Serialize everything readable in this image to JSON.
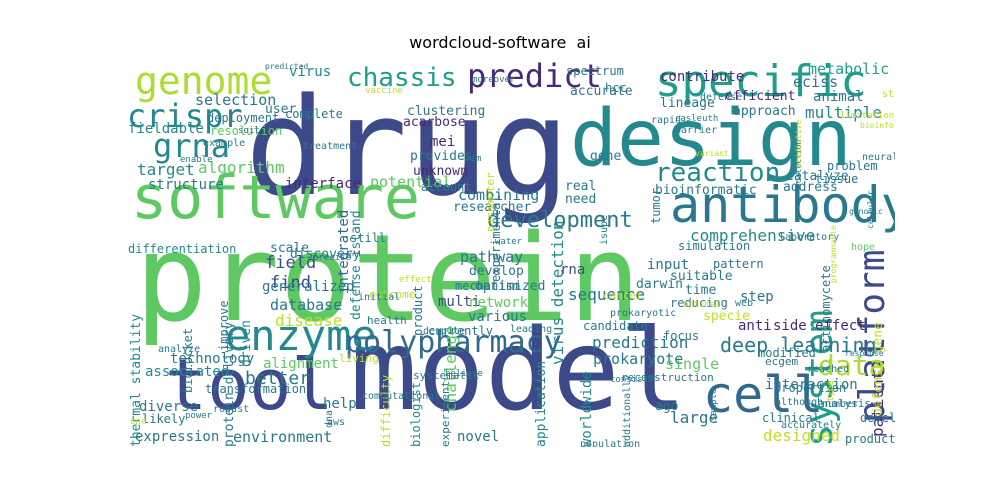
{
  "title": "wordcloud-software  ai",
  "palette": [
    "#3d4a89",
    "#23898e",
    "#5ec962",
    "#482878",
    "#2a788e",
    "#bddf26",
    "#addc30",
    "#31688e",
    "#1f9e89",
    "#fde725"
  ],
  "words": [
    {
      "text": "drug",
      "c": 0
    },
    {
      "text": "protein",
      "c": 2
    },
    {
      "text": "model",
      "c": 0
    },
    {
      "text": "design",
      "c": 1
    },
    {
      "text": "software",
      "c": 2
    },
    {
      "text": "antibody",
      "c": 4
    },
    {
      "text": "tool",
      "c": 0
    },
    {
      "text": "cell",
      "c": 7
    },
    {
      "text": "genome",
      "c": 6
    },
    {
      "text": "specific",
      "c": 8
    },
    {
      "text": "predict",
      "c": 3
    },
    {
      "text": "crispr",
      "c": 1
    },
    {
      "text": "grna",
      "c": 1
    },
    {
      "text": "enzyme",
      "c": 1
    },
    {
      "text": "polypharmacy",
      "c": 7
    },
    {
      "text": "platform",
      "c": 0
    },
    {
      "text": "system",
      "c": 8
    },
    {
      "text": "data",
      "c": 6
    },
    {
      "text": "reaction",
      "c": 1
    },
    {
      "text": "development",
      "c": 4
    },
    {
      "text": "chassis",
      "c": 8
    },
    {
      "text": "deep learning",
      "c": 4
    },
    {
      "text": "eciss",
      "c": 4
    },
    {
      "text": "metabolic",
      "c": 8
    },
    {
      "text": "contribute",
      "c": 3
    },
    {
      "text": "selection",
      "c": 4
    },
    {
      "text": "algorithm",
      "c": 2
    },
    {
      "text": "target",
      "c": 1
    },
    {
      "text": "structure",
      "c": 4
    },
    {
      "text": "fieldable",
      "c": 1
    },
    {
      "text": "virus",
      "c": 1
    },
    {
      "text": "lineage",
      "c": 4
    },
    {
      "text": "efficient",
      "c": 3
    },
    {
      "text": "animal",
      "c": 4
    },
    {
      "text": "multiple",
      "c": 1
    },
    {
      "text": "approach",
      "c": 4
    },
    {
      "text": "mei",
      "c": 3
    },
    {
      "text": "provides",
      "c": 4
    },
    {
      "text": "acarbose",
      "c": 3
    },
    {
      "text": "clustering",
      "c": 4
    },
    {
      "text": "unknown",
      "c": 3
    },
    {
      "text": "combining",
      "c": 4
    },
    {
      "text": "potential",
      "c": 2
    },
    {
      "text": "integrated",
      "c": 7
    },
    {
      "text": "defense island",
      "c": 1
    },
    {
      "text": "virus detection",
      "c": 1
    },
    {
      "text": "interface",
      "c": 3
    },
    {
      "text": "researcher",
      "c": 4
    },
    {
      "text": "comprehensive",
      "c": 1
    },
    {
      "text": "bioinformatic",
      "c": 4
    },
    {
      "text": "address",
      "c": 4
    },
    {
      "text": "patient",
      "c": 3
    },
    {
      "text": "field",
      "c": 0
    },
    {
      "text": "find",
      "c": 0
    },
    {
      "text": "database",
      "c": 4
    },
    {
      "text": "disease",
      "c": 5
    },
    {
      "text": "pathway",
      "c": 4
    },
    {
      "text": "sequence",
      "c": 4
    },
    {
      "text": "input",
      "c": 4
    },
    {
      "text": "suitable",
      "c": 4
    },
    {
      "text": "time",
      "c": 4
    },
    {
      "text": "darwin",
      "c": 4
    },
    {
      "text": "step",
      "c": 4
    },
    {
      "text": "prediction",
      "c": 4
    },
    {
      "text": "prokaryote",
      "c": 4
    },
    {
      "text": "single",
      "c": 2
    },
    {
      "text": "anti",
      "c": 3
    },
    {
      "text": "side effect",
      "c": 3
    },
    {
      "text": "alignment",
      "c": 2
    },
    {
      "text": "technology",
      "c": 4
    },
    {
      "text": "associated",
      "c": 1
    },
    {
      "text": "better",
      "c": 4
    },
    {
      "text": "environment",
      "c": 4
    },
    {
      "text": "help",
      "c": 4
    },
    {
      "text": "interaction",
      "c": 4
    },
    {
      "text": "large",
      "c": 4
    },
    {
      "text": "expression",
      "c": 4
    },
    {
      "text": "designed",
      "c": 5
    },
    {
      "text": "production",
      "c": 4
    },
    {
      "text": "novel",
      "c": 4
    },
    {
      "text": "multi",
      "c": 0
    },
    {
      "text": "network",
      "c": 2
    },
    {
      "text": "various",
      "c": 4
    },
    {
      "text": "develop",
      "c": 4
    },
    {
      "text": "optimized",
      "c": 4
    },
    {
      "text": "currently",
      "c": 4
    },
    {
      "text": "rna",
      "c": 0
    },
    {
      "text": "gene",
      "c": 4
    },
    {
      "text": "real",
      "c": 4
    },
    {
      "text": "need",
      "c": 4
    },
    {
      "text": "account",
      "c": 4
    },
    {
      "text": "mechanism",
      "c": 4
    },
    {
      "text": "product",
      "c": 4
    },
    {
      "text": "challenge",
      "c": 2
    },
    {
      "text": "experimental",
      "c": 4
    },
    {
      "text": "parameter",
      "c": 5
    },
    {
      "text": "accurate",
      "c": 4
    },
    {
      "text": "spectrum",
      "c": 4
    },
    {
      "text": "hcc",
      "c": 4
    },
    {
      "text": "user",
      "c": 4
    },
    {
      "text": "complete",
      "c": 4
    },
    {
      "text": "deployment",
      "c": 4
    },
    {
      "text": "resolution",
      "c": 2
    },
    {
      "text": "example",
      "c": 4
    },
    {
      "text": "enable",
      "c": 4
    },
    {
      "text": "differentiation",
      "c": 1
    },
    {
      "text": "scale",
      "c": 4
    },
    {
      "text": "discovery",
      "c": 4
    },
    {
      "text": "still",
      "c": 4
    },
    {
      "text": "generalized",
      "c": 4
    },
    {
      "text": "transformation",
      "c": 4
    },
    {
      "text": "diverse",
      "c": 4
    },
    {
      "text": "likely",
      "c": 4
    },
    {
      "text": "robust",
      "c": 4
    },
    {
      "text": "power",
      "c": 4
    },
    {
      "text": "pattern",
      "c": 4
    },
    {
      "text": "reducing",
      "c": 4
    },
    {
      "text": "simulation",
      "c": 4
    },
    {
      "text": "laboratory",
      "c": 4
    },
    {
      "text": "hope",
      "c": 2
    },
    {
      "text": "catalyze",
      "c": 4
    },
    {
      "text": "tissue",
      "c": 4
    },
    {
      "text": "problem",
      "c": 4
    },
    {
      "text": "neural",
      "c": 4
    },
    {
      "text": "study",
      "c": 5
    },
    {
      "text": "rapid",
      "c": 4
    },
    {
      "text": "barrier",
      "c": 4
    },
    {
      "text": "defense",
      "c": 4
    },
    {
      "text": "modified",
      "c": 4
    },
    {
      "text": "ecgem",
      "c": 4
    },
    {
      "text": "although",
      "c": 4
    },
    {
      "text": "proportion",
      "c": 4
    },
    {
      "text": "clinical",
      "c": 4
    },
    {
      "text": "accurately",
      "c": 4
    },
    {
      "text": "analysis",
      "c": 4
    },
    {
      "text": "developed",
      "c": 4
    },
    {
      "text": "defense gene",
      "c": 5
    },
    {
      "text": "actinomycete",
      "c": 4
    },
    {
      "text": "tumor",
      "c": 4
    },
    {
      "text": "protein delivery",
      "c": 4
    },
    {
      "text": "thermal stability",
      "c": 1
    },
    {
      "text": "driven",
      "c": 1
    },
    {
      "text": "improve",
      "c": 4
    },
    {
      "text": "biorocket",
      "c": 4
    },
    {
      "text": "worldwide",
      "c": 1
    },
    {
      "text": "application",
      "c": 1
    },
    {
      "text": "biologist",
      "c": 1
    },
    {
      "text": "difficulty",
      "c": 5
    },
    {
      "text": "experiment",
      "c": 4
    },
    {
      "text": "ago",
      "c": 4
    },
    {
      "text": "specie",
      "c": 5
    },
    {
      "text": "focus",
      "c": 4
    },
    {
      "text": "leading",
      "c": 4
    },
    {
      "text": "candidate",
      "c": 4
    },
    {
      "text": "reconstruction",
      "c": 4
    },
    {
      "text": "web",
      "c": 4
    },
    {
      "text": "cancer",
      "c": 5
    },
    {
      "text": "health",
      "c": 4
    },
    {
      "text": "outcome",
      "c": 5
    },
    {
      "text": "initial",
      "c": 4
    },
    {
      "text": "analyze",
      "c": 4
    },
    {
      "text": "dna",
      "c": 4
    },
    {
      "text": "computational",
      "c": 4
    },
    {
      "text": "living",
      "c": 5
    },
    {
      "text": "additionally",
      "c": 4
    },
    {
      "text": "population",
      "c": 4
    },
    {
      "text": "systematic",
      "c": 4
    },
    {
      "text": "believe",
      "c": 4
    },
    {
      "text": "predicted",
      "c": 4
    },
    {
      "text": "moreover",
      "c": 4
    },
    {
      "text": "aim",
      "c": 4
    },
    {
      "text": "treatment",
      "c": 4
    },
    {
      "text": "isupe",
      "c": 4
    },
    {
      "text": "effect",
      "c": 5
    },
    {
      "text": "water",
      "c": 4
    },
    {
      "text": "precise",
      "c": 4
    },
    {
      "text": "casleuth",
      "c": 4
    },
    {
      "text": "number",
      "c": 4
    },
    {
      "text": "aws",
      "c": 4
    },
    {
      "text": "one",
      "c": 5
    },
    {
      "text": "optimal",
      "c": 5
    },
    {
      "text": "prokaryotic",
      "c": 4
    },
    {
      "text": "consists",
      "c": 4
    },
    {
      "text": "despite",
      "c": 4
    },
    {
      "text": "type",
      "c": 5
    },
    {
      "text": "soil",
      "c": 4
    },
    {
      "text": "reached",
      "c": 4
    },
    {
      "text": "sample",
      "c": 4
    },
    {
      "text": "vaccine",
      "c": 5
    },
    {
      "text": "detection",
      "c": 4
    },
    {
      "text": "predictive",
      "c": 5
    },
    {
      "text": "programmable",
      "c": 5
    },
    {
      "text": "limitation",
      "c": 5
    },
    {
      "text": "bioinformatics",
      "c": 5
    },
    {
      "text": "cellular",
      "c": 4
    },
    {
      "text": "genomic",
      "c": 4
    },
    {
      "text": "variant",
      "c": 5
    },
    {
      "text": "response",
      "c": 4
    },
    {
      "text": "target specific",
      "c": 4
    },
    {
      "text": "function",
      "c": 4
    }
  ]
}
